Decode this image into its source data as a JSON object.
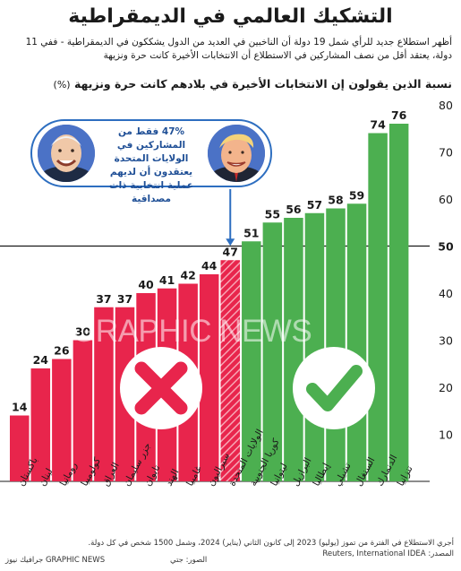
{
  "header": {
    "title": "التشكيك العالمي في الديمقراطية",
    "subtitle": "أظهر استطلاع جديد للرأي شمل 19 دولة أن الناخبين في العديد من الدول يشككون في الديمقراطية - ففي 11 دولة، يعتقد أقل من نصف المشاركين في الاستطلاع أن الانتخابات الأخيرة كانت حرة ونزيهة"
  },
  "chart_data": {
    "type": "bar",
    "ylabel": "نسبة الذين يقولون إن الانتخابات الأخيرة في بلادهم كانت حرة ونزيهة",
    "yunit": "(%)",
    "ylim": [
      0,
      80
    ],
    "yticks": [
      10,
      20,
      30,
      40,
      50,
      60,
      70,
      80
    ],
    "threshold": 50,
    "categories": [
      "باكستان",
      "لبنان",
      "رومانيا",
      "كولومبيا",
      "العراق",
      "جزر سليمان",
      "تايوان",
      "الهند",
      "غامبيا",
      "سيراليون",
      "الولايات المتحدة",
      "كوريا الجنوبية",
      "ليتوانيا",
      "البرازيل",
      "إيطاليا",
      "تشيلي",
      "السنغال",
      "الدنمارك",
      "تنزانيا"
    ],
    "values": [
      14,
      24,
      26,
      30,
      37,
      37,
      40,
      41,
      42,
      44,
      47,
      51,
      55,
      56,
      57,
      58,
      59,
      74,
      76
    ],
    "colors": {
      "below": "#e8254c",
      "above": "#4caf50",
      "hatch": "#f7a5b4"
    },
    "grid": false,
    "legend": "none"
  },
  "callout": {
    "text": "47% فقط من المشاركين في الولايات المتحدة يعتقدون أن لديهم عملية انتخابية ذات مصداقية",
    "border_color": "#2d6ec0",
    "left_portrait": "biden-portrait-icon",
    "right_portrait": "trump-portrait-icon"
  },
  "icons": {
    "cross": "cross-mark-icon",
    "check": "check-mark-icon"
  },
  "watermark": "GRAPHIC NEWS",
  "footer": {
    "note": "أجري الاستطلاع في الفترة من تموز (يوليو) 2023 إلى كانون الثاني (يناير) 2024، وشمل 1500 شخص في كل دولة.",
    "source": "المصدر: Reuters, International IDEA",
    "photos": "الصور: جتي",
    "credit": "GRAPHIC NEWS جرافيك نيوز"
  }
}
